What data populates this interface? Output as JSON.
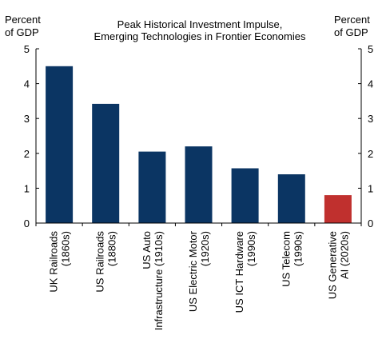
{
  "chart_data": {
    "type": "bar",
    "title_line1": "Peak Historical Investment  Impulse,",
    "title_line2": "Emerging Technologies  in Frontier Economies",
    "ylabel_left": [
      "Percent",
      "of GDP"
    ],
    "ylabel_right": [
      "Percent",
      "of GDP"
    ],
    "ylim": [
      0,
      5
    ],
    "yticks": [
      0,
      1,
      2,
      3,
      4,
      5
    ],
    "categories": [
      [
        "UK Railroads",
        "(1860s)"
      ],
      [
        "US Railroads",
        "(1880s)"
      ],
      [
        "US Auto",
        "Infrastructure (1910s)"
      ],
      [
        "US Electric Motor",
        "(1920s)"
      ],
      [
        "US ICT Hardware",
        "(1990s)"
      ],
      [
        "US Telecom",
        "(1990s)"
      ],
      [
        "US Generative",
        "AI (2020s)"
      ]
    ],
    "values": [
      4.5,
      3.42,
      2.05,
      2.2,
      1.57,
      1.4,
      0.8
    ],
    "colors": [
      "#0b3563",
      "#0b3563",
      "#0b3563",
      "#0b3563",
      "#0b3563",
      "#0b3563",
      "#c0302e"
    ],
    "grid": false,
    "legend": "none"
  }
}
